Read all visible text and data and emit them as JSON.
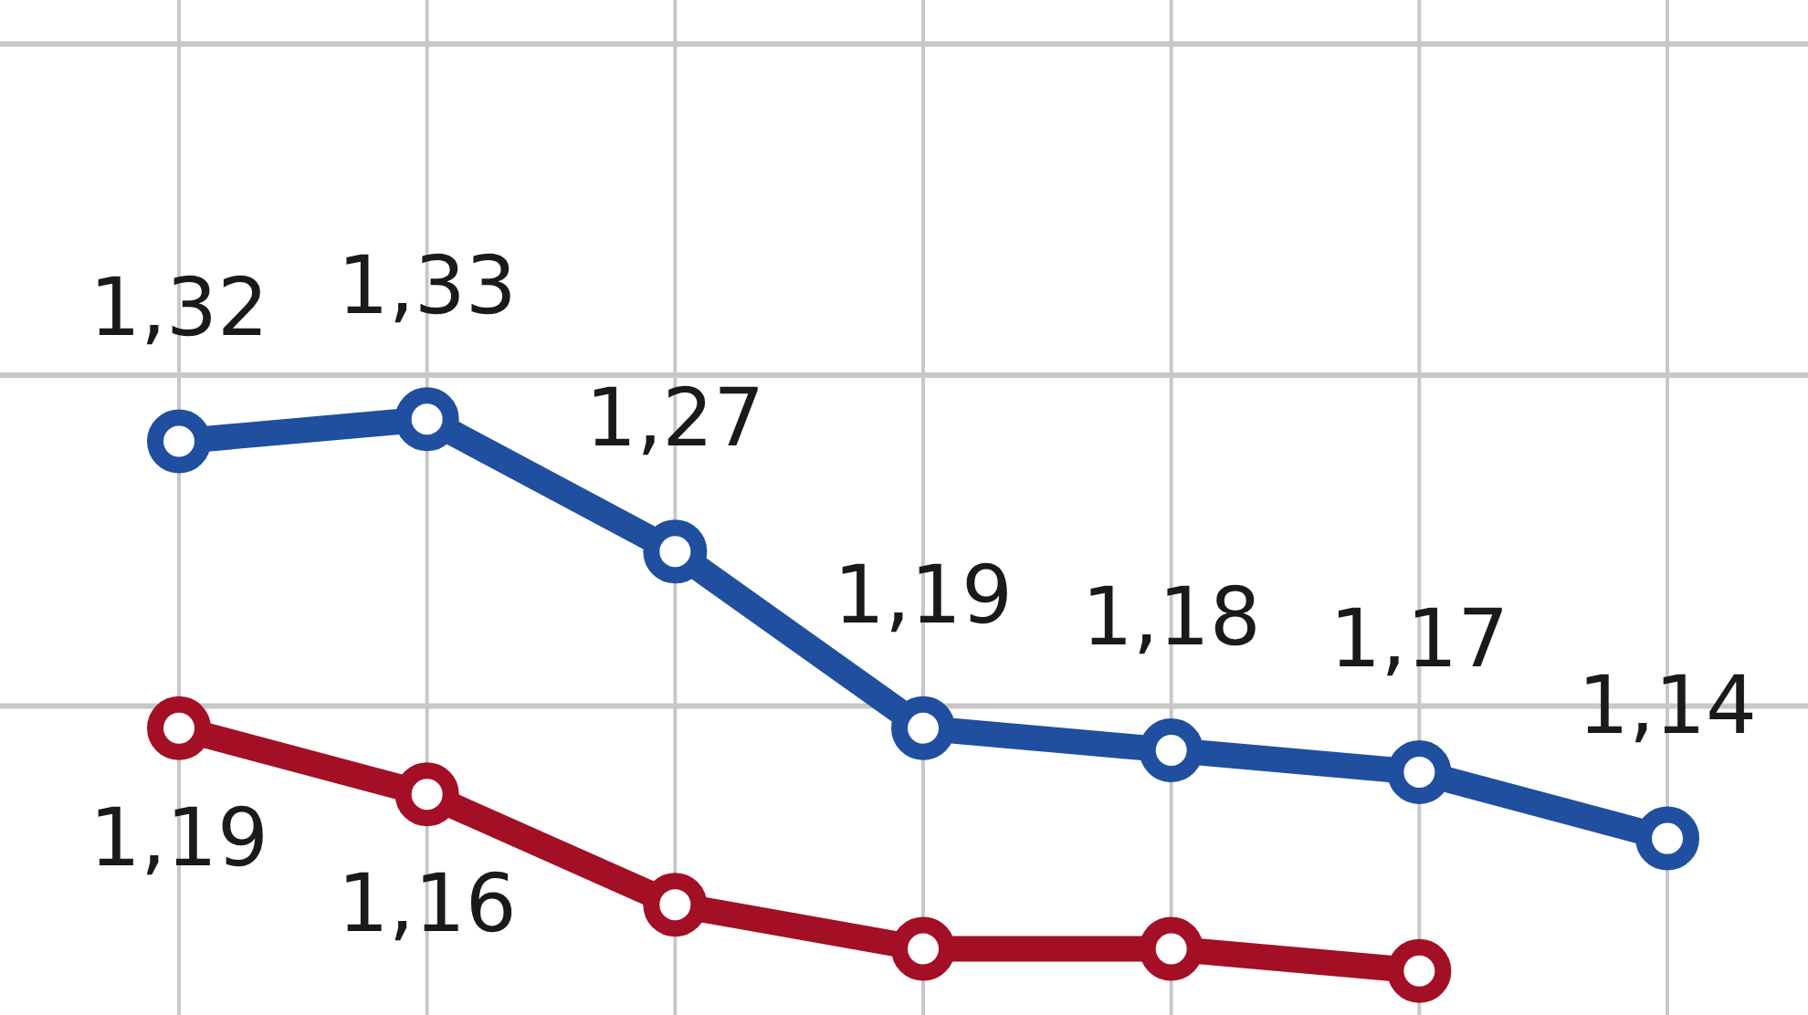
{
  "chart_data": {
    "type": "line",
    "categories": [
      null,
      null,
      null,
      null,
      null,
      null,
      null
    ],
    "series": [
      {
        "color": "#1f4f9e",
        "values": [
          1.32,
          1.33,
          1.27,
          1.19,
          1.18,
          1.17,
          1.14
        ],
        "value_labels": [
          "1,32",
          "1,33",
          "1,27",
          "1,19",
          "1,18",
          "1,17",
          "1,14"
        ]
      },
      {
        "color": "#a30f25",
        "values": [
          1.19,
          1.16,
          1.11,
          1.09,
          1.09,
          1.08,
          null
        ],
        "value_labels": [
          "1,19",
          "1,16",
          null,
          null,
          null,
          null,
          null
        ]
      }
    ],
    "ylim": [
      1.06,
      1.52
    ],
    "yticks": [
      {
        "value": 1.2,
        "label": null
      },
      {
        "value": 1.35,
        "label": null
      },
      {
        "value": 1.5,
        "label": null
      }
    ],
    "grid": true,
    "marker": "circle",
    "line_style": "solid"
  }
}
